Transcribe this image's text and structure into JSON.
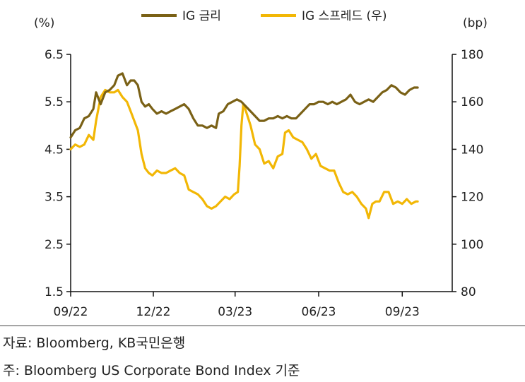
{
  "chart_data": {
    "type": "line",
    "y_left": {
      "unit": "(%)",
      "ticks": [
        "6.5",
        "5.5",
        "4.5",
        "3.5",
        "2.5",
        "1.5"
      ],
      "range": [
        1.5,
        6.5
      ]
    },
    "y_right": {
      "unit": "(bp)",
      "ticks": [
        "180",
        "160",
        "140",
        "120",
        "100",
        "80"
      ],
      "range": [
        80,
        180
      ]
    },
    "x_ticks": [
      {
        "label": "09/22",
        "t": 0
      },
      {
        "label": "12/22",
        "t": 91
      },
      {
        "label": "03/23",
        "t": 181
      },
      {
        "label": "06/23",
        "t": 273
      },
      {
        "label": "09/23",
        "t": 365
      }
    ],
    "x_range_days": [
      0,
      420
    ],
    "legend_position": "top",
    "grid": false,
    "series": [
      {
        "name": "IG 금리",
        "axis": "left",
        "color": "#7a6116",
        "points": [
          [
            0,
            4.75
          ],
          [
            5,
            4.9
          ],
          [
            10,
            4.95
          ],
          [
            15,
            5.15
          ],
          [
            20,
            5.2
          ],
          [
            25,
            5.35
          ],
          [
            28,
            5.7
          ],
          [
            33,
            5.45
          ],
          [
            38,
            5.7
          ],
          [
            43,
            5.75
          ],
          [
            48,
            5.85
          ],
          [
            52,
            6.05
          ],
          [
            57,
            6.1
          ],
          [
            62,
            5.85
          ],
          [
            66,
            5.95
          ],
          [
            70,
            5.95
          ],
          [
            74,
            5.85
          ],
          [
            78,
            5.5
          ],
          [
            82,
            5.4
          ],
          [
            86,
            5.45
          ],
          [
            90,
            5.35
          ],
          [
            95,
            5.25
          ],
          [
            100,
            5.3
          ],
          [
            105,
            5.25
          ],
          [
            110,
            5.3
          ],
          [
            115,
            5.35
          ],
          [
            120,
            5.4
          ],
          [
            125,
            5.45
          ],
          [
            130,
            5.35
          ],
          [
            135,
            5.15
          ],
          [
            140,
            5.0
          ],
          [
            145,
            5.0
          ],
          [
            150,
            4.95
          ],
          [
            155,
            5.0
          ],
          [
            160,
            4.95
          ],
          [
            163,
            5.25
          ],
          [
            168,
            5.3
          ],
          [
            173,
            5.45
          ],
          [
            178,
            5.5
          ],
          [
            183,
            5.55
          ],
          [
            188,
            5.5
          ],
          [
            193,
            5.4
          ],
          [
            198,
            5.3
          ],
          [
            203,
            5.2
          ],
          [
            208,
            5.1
          ],
          [
            213,
            5.1
          ],
          [
            218,
            5.15
          ],
          [
            223,
            5.15
          ],
          [
            228,
            5.2
          ],
          [
            233,
            5.15
          ],
          [
            238,
            5.2
          ],
          [
            243,
            5.15
          ],
          [
            248,
            5.15
          ],
          [
            253,
            5.25
          ],
          [
            258,
            5.35
          ],
          [
            263,
            5.45
          ],
          [
            268,
            5.45
          ],
          [
            273,
            5.5
          ],
          [
            278,
            5.5
          ],
          [
            283,
            5.45
          ],
          [
            288,
            5.5
          ],
          [
            293,
            5.45
          ],
          [
            298,
            5.5
          ],
          [
            303,
            5.55
          ],
          [
            308,
            5.65
          ],
          [
            313,
            5.5
          ],
          [
            318,
            5.45
          ],
          [
            323,
            5.5
          ],
          [
            328,
            5.55
          ],
          [
            333,
            5.5
          ],
          [
            338,
            5.6
          ],
          [
            343,
            5.7
          ],
          [
            348,
            5.75
          ],
          [
            353,
            5.85
          ],
          [
            358,
            5.8
          ],
          [
            363,
            5.7
          ],
          [
            368,
            5.65
          ],
          [
            373,
            5.75
          ],
          [
            378,
            5.8
          ],
          [
            382,
            5.8
          ]
        ]
      },
      {
        "name": "IG 스프레드 (우)",
        "axis": "right",
        "color": "#f2b705",
        "points": [
          [
            0,
            140
          ],
          [
            5,
            142
          ],
          [
            10,
            141
          ],
          [
            15,
            142
          ],
          [
            20,
            146
          ],
          [
            25,
            144
          ],
          [
            28,
            152
          ],
          [
            33,
            162
          ],
          [
            38,
            165
          ],
          [
            43,
            164
          ],
          [
            48,
            164
          ],
          [
            52,
            165
          ],
          [
            57,
            162
          ],
          [
            62,
            160
          ],
          [
            66,
            156
          ],
          [
            70,
            152
          ],
          [
            74,
            148
          ],
          [
            78,
            138
          ],
          [
            82,
            132
          ],
          [
            86,
            130
          ],
          [
            90,
            129
          ],
          [
            95,
            131
          ],
          [
            100,
            130
          ],
          [
            105,
            130
          ],
          [
            110,
            131
          ],
          [
            115,
            132
          ],
          [
            120,
            130
          ],
          [
            125,
            129
          ],
          [
            130,
            123
          ],
          [
            135,
            122
          ],
          [
            140,
            121
          ],
          [
            145,
            119
          ],
          [
            150,
            116
          ],
          [
            155,
            115
          ],
          [
            160,
            116
          ],
          [
            165,
            118
          ],
          [
            170,
            120
          ],
          [
            175,
            119
          ],
          [
            180,
            121
          ],
          [
            184,
            122
          ],
          [
            186,
            133
          ],
          [
            188,
            150
          ],
          [
            190,
            159
          ],
          [
            193,
            156
          ],
          [
            198,
            150
          ],
          [
            203,
            142
          ],
          [
            208,
            140
          ],
          [
            213,
            134
          ],
          [
            218,
            135
          ],
          [
            223,
            132
          ],
          [
            228,
            137
          ],
          [
            233,
            138
          ],
          [
            236,
            147
          ],
          [
            240,
            148
          ],
          [
            245,
            145
          ],
          [
            250,
            144
          ],
          [
            255,
            143
          ],
          [
            260,
            140
          ],
          [
            265,
            136
          ],
          [
            270,
            138
          ],
          [
            275,
            133
          ],
          [
            280,
            132
          ],
          [
            285,
            131
          ],
          [
            290,
            131
          ],
          [
            295,
            126
          ],
          [
            300,
            122
          ],
          [
            305,
            121
          ],
          [
            310,
            122
          ],
          [
            315,
            120
          ],
          [
            320,
            117
          ],
          [
            325,
            115
          ],
          [
            328,
            111
          ],
          [
            332,
            117
          ],
          [
            336,
            118
          ],
          [
            340,
            118
          ],
          [
            345,
            122
          ],
          [
            350,
            122
          ],
          [
            355,
            117
          ],
          [
            360,
            118
          ],
          [
            365,
            117
          ],
          [
            370,
            119
          ],
          [
            375,
            117
          ],
          [
            380,
            118
          ],
          [
            382,
            118
          ]
        ]
      }
    ]
  },
  "notes": {
    "source": "자료: Bloomberg, KB국민은행",
    "basis": "주: Bloomberg US Corporate Bond Index 기준"
  }
}
